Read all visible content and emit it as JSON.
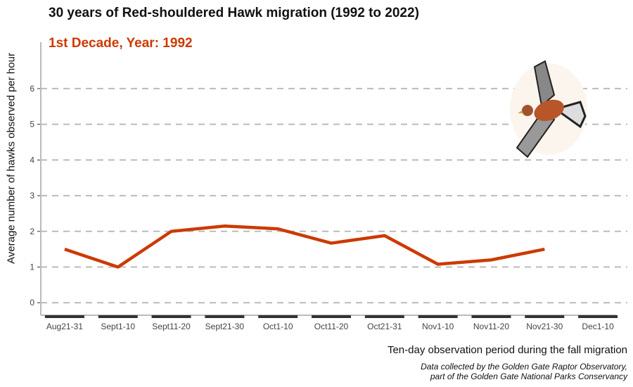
{
  "chart_data": {
    "type": "line",
    "title": "30 years of Red-shouldered Hawk migration (1992 to 2022)",
    "subtitle": "1st Decade, Year: 1992",
    "xlabel": "Ten-day observation period during the fall migration",
    "ylabel": "Average number of hawks observed per hour",
    "caption": [
      "Data collected by the Golden Gate Raptor Observatory,",
      "part of the Golden Gate National Parks Conservancy"
    ],
    "categories": [
      "Aug21-31",
      "Sept1-10",
      "Sept11-20",
      "Sept21-30",
      "Oct1-10",
      "Oct11-20",
      "Oct21-31",
      "Nov1-10",
      "Nov11-20",
      "Nov21-30",
      "Dec1-10"
    ],
    "values": [
      1.5,
      1.0,
      2.0,
      2.15,
      2.07,
      1.67,
      1.88,
      1.08,
      1.2,
      1.5,
      null
    ],
    "yticks": [
      0,
      1,
      2,
      3,
      4,
      5,
      6
    ],
    "ylim": [
      -0.35,
      7.3
    ],
    "grid": "horizontal dashed",
    "line_color": "#cc3a00",
    "image": "red-shouldered-hawk"
  }
}
